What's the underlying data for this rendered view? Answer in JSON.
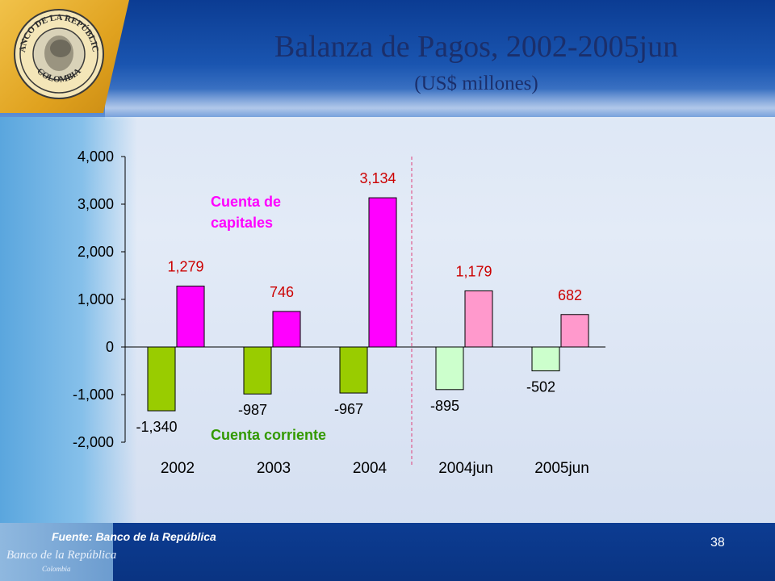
{
  "slide": {
    "title": "Balanza de Pagos, 2002-2005jun",
    "subtitle": "(US$ millones)",
    "source": "Fuente: Banco de la República",
    "page_number": "38",
    "logo": {
      "name": "banco-de-la-republica-seal",
      "ring_text": "BANCO DE LA REPÚBLICA",
      "bottom_text": "COLOMBIA"
    },
    "brand_text": "Banco de la República",
    "brand_sub": "Colombia"
  },
  "colors": {
    "capital_actual": "#ff00ff",
    "capital_partial": "#ff99cc",
    "corriente_actual": "#99cc00",
    "corriente_partial": "#ccffcc",
    "label_red": "#cc0000",
    "annotation_capital": "#ff00ff",
    "annotation_corriente": "#339900"
  },
  "chart_data": {
    "type": "bar",
    "categories": [
      "2002",
      "2003",
      "2004",
      "2004jun",
      "2005jun"
    ],
    "series": [
      {
        "name": "Cuenta corriente",
        "values": [
          -1340,
          -987,
          -967,
          -895,
          -502
        ],
        "labels": [
          "-1,340",
          "-987",
          "-967",
          "-895",
          "-502"
        ]
      },
      {
        "name": "Cuenta de capitales",
        "values": [
          1279,
          746,
          3134,
          1179,
          682
        ],
        "labels": [
          "1,279",
          "746",
          "3,134",
          "1,179",
          "682"
        ]
      }
    ],
    "annotations": {
      "capital_line1": "Cuenta de",
      "capital_line2": "capitales",
      "corriente": "Cuenta corriente"
    },
    "ylim": [
      -2000,
      4000
    ],
    "yticks": [
      4000,
      3000,
      2000,
      1000,
      0,
      -1000,
      -2000
    ],
    "ytick_labels": [
      "4,000",
      "3,000",
      "2,000",
      "1,000",
      "0",
      "-1,000",
      "-2,000"
    ],
    "separator_after_index": 2,
    "partial_periods": [
      3,
      4
    ],
    "legend": "none",
    "grid": false
  }
}
